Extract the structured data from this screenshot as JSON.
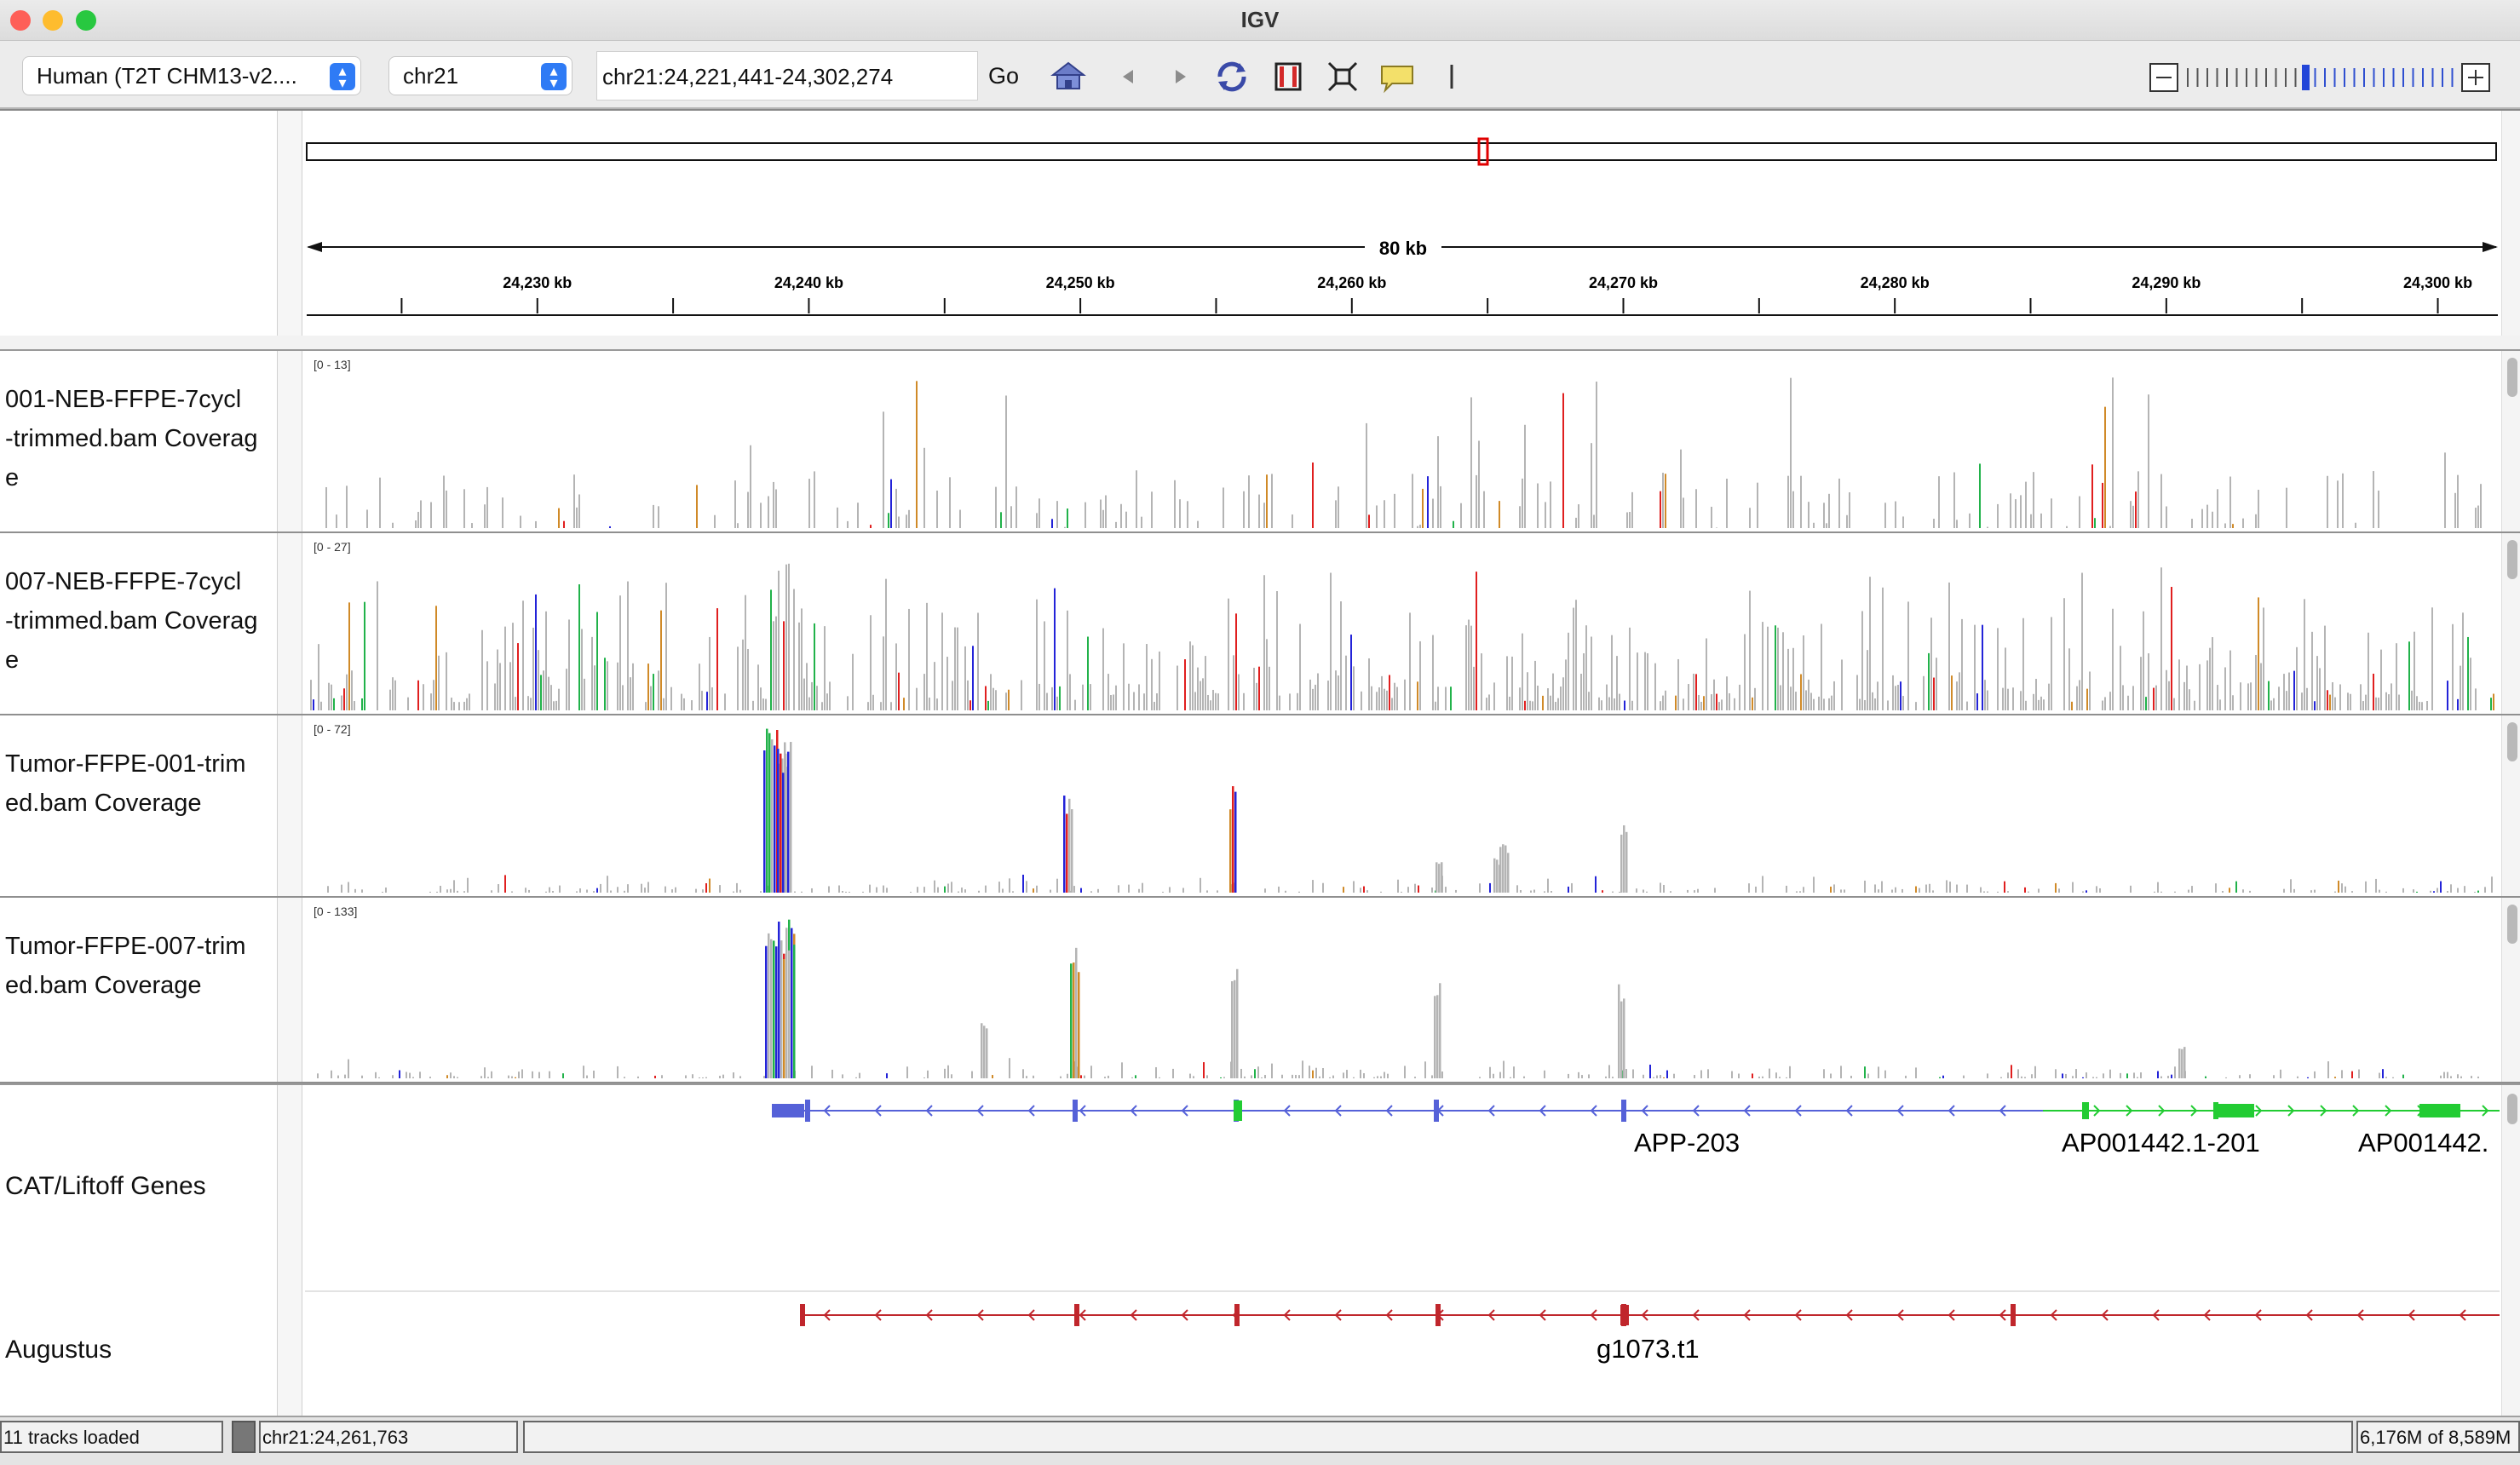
{
  "window": {
    "title": "IGV",
    "controls": {
      "close_color": "#fe5f57",
      "minimize_color": "#febc2e",
      "zoom_color": "#28c840"
    }
  },
  "toolbar": {
    "genome_select": "Human (T2T CHM13-v2....",
    "chromosome_select": "chr21",
    "locus": "chr21:24,221,441-24,302,274",
    "go_label": "Go",
    "icons": [
      "home-icon",
      "back-icon",
      "forward-icon",
      "refresh-icon",
      "region-of-interest-icon",
      "resize-to-window-icon",
      "popup-info-icon",
      "ruler-line-icon"
    ],
    "zoom_level_fraction": 0.45
  },
  "ruler": {
    "span_label": "80 kb",
    "tick_labels": [
      "24,230 kb",
      "24,240 kb",
      "24,250 kb",
      "24,260 kb",
      "24,270 kb",
      "24,280 kb",
      "24,290 kb",
      "24,300 kb"
    ],
    "cytoband_marker_color": "#e00000"
  },
  "tracks": [
    {
      "name": "001-NEB-FFPE-7cycl -trimmed.bam Coverag e",
      "name_lines": [
        "001-NEB-FFPE-7cycl",
        "-trimmed.bam Coverag",
        "e"
      ],
      "range": "[0 - 13]"
    },
    {
      "name": "007-NEB-FFPE-7cycl -trimmed.bam Coverag e",
      "name_lines": [
        "007-NEB-FFPE-7cycl",
        "-trimmed.bam Coverag",
        "e"
      ],
      "range": "[0 - 27]"
    },
    {
      "name": "Tumor-FFPE-001-trim ed.bam Coverage",
      "name_lines": [
        "Tumor-FFPE-001-trim",
        "ed.bam Coverage"
      ],
      "range": "[0 - 72]"
    },
    {
      "name": "Tumor-FFPE-007-trim ed.bam Coverage",
      "name_lines": [
        "Tumor-FFPE-007-trim",
        "ed.bam Coverage"
      ],
      "range": "[0 - 133]"
    }
  ],
  "coverage_colors": {
    "coverage": "#b4b4b4",
    "A": "#21b24a",
    "C": "#2323d8",
    "G": "#d08a28",
    "T": "#e01f1f"
  },
  "annotations": {
    "liftoff": {
      "track_name": "CAT/Liftoff Genes",
      "genes": [
        "APP-203",
        "AP001442.1-201",
        "AP001442."
      ],
      "colors": {
        "APP-203": "#5561d8",
        "AP001442": "#22cc33"
      }
    },
    "augustus": {
      "track_name": "Augustus",
      "genes": [
        "g1073.t1"
      ],
      "color": "#c0262c"
    }
  },
  "status": {
    "tracks_loaded": "11 tracks loaded",
    "position": "chr21:24,261,763",
    "memory": "6,176M of 8,589M"
  }
}
